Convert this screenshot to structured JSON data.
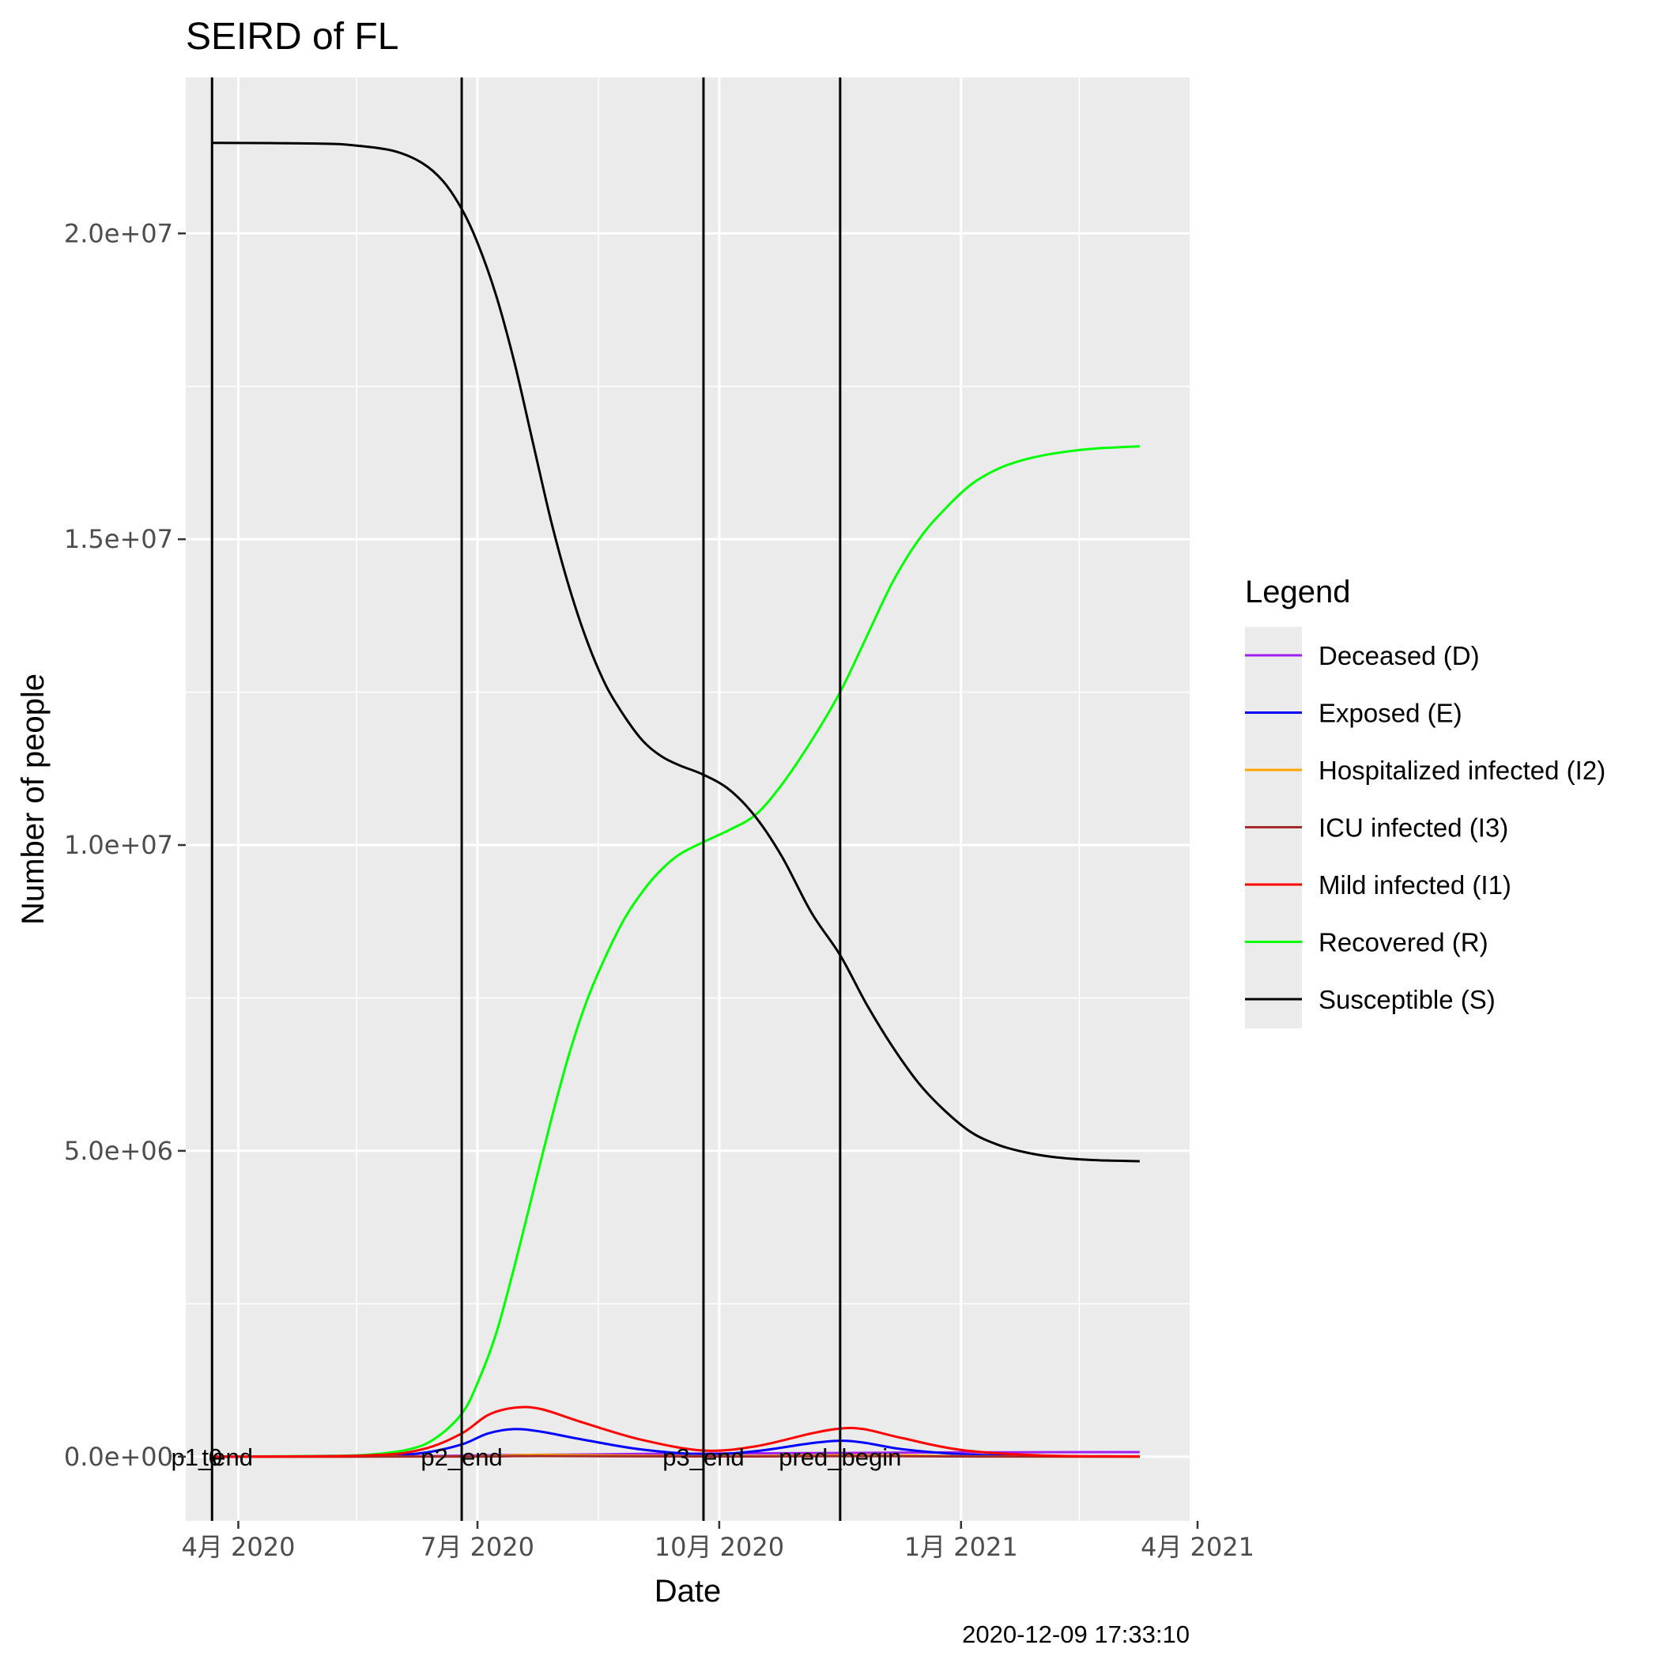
{
  "chart_data": {
    "type": "line",
    "title": "SEIRD of FL",
    "xlabel": "Date",
    "ylabel": "Number of people",
    "caption": "2020-12-09 17:33:10",
    "xlim": [
      "2020-03-12",
      "2021-03-29"
    ],
    "ylim": [
      -1050000,
      22550000
    ],
    "grid": true,
    "x_ticks": [
      {
        "date": "2020-04-01",
        "label": "4月 2020"
      },
      {
        "date": "2020-07-01",
        "label": "7月 2020"
      },
      {
        "date": "2020-10-01",
        "label": "10月 2020"
      },
      {
        "date": "2021-01-01",
        "label": "1月 2021"
      },
      {
        "date": "2021-04-01",
        "label": "4月 2021"
      }
    ],
    "x_minor_ticks": [
      "2020-05-16",
      "2020-08-16",
      "2020-11-16",
      "2021-02-15"
    ],
    "y_ticks": [
      {
        "value": 0,
        "label": "0.0e+00"
      },
      {
        "value": 5000000,
        "label": "5.0e+06"
      },
      {
        "value": 10000000,
        "label": "1.0e+07"
      },
      {
        "value": 15000000,
        "label": "1.5e+07"
      },
      {
        "value": 20000000,
        "label": "2.0e+07"
      }
    ],
    "y_minor_ticks": [
      2500000,
      7500000,
      12500000,
      17500000
    ],
    "vlines": [
      {
        "date": "2020-03-22",
        "label": "p1_end"
      },
      {
        "date": "2020-03-22",
        "label": "t0"
      },
      {
        "date": "2020-06-25",
        "label": "p2_end"
      },
      {
        "date": "2020-09-25",
        "label": "p3_end"
      },
      {
        "date": "2020-11-16",
        "label": "pred_begin"
      }
    ],
    "legend": {
      "title": "Legend",
      "position": "right"
    },
    "series": [
      {
        "name": "Deceased (D)",
        "color": "#a020f0",
        "x": [
          "2020-03-22",
          "2020-06-01",
          "2020-07-10",
          "2020-09-01",
          "2020-11-16",
          "2021-01-01",
          "2021-03-10"
        ],
        "values": [
          0,
          5000,
          25000,
          45000,
          60000,
          70000,
          75000
        ]
      },
      {
        "name": "Exposed (E)",
        "color": "#0000ff",
        "x": [
          "2020-03-22",
          "2020-05-20",
          "2020-06-10",
          "2020-06-25",
          "2020-07-05",
          "2020-07-15",
          "2020-07-25",
          "2020-08-10",
          "2020-09-01",
          "2020-09-25",
          "2020-10-15",
          "2020-11-05",
          "2020-11-16",
          "2020-11-25",
          "2020-12-10",
          "2021-01-01",
          "2021-02-01",
          "2021-03-10"
        ],
        "values": [
          0,
          10000,
          60000,
          200000,
          380000,
          450000,
          410000,
          280000,
          120000,
          40000,
          90000,
          220000,
          260000,
          230000,
          120000,
          40000,
          8000,
          2000
        ]
      },
      {
        "name": "Hospitalized infected (I2)",
        "color": "#ffa500",
        "x": [
          "2020-03-22",
          "2020-06-25",
          "2020-07-25",
          "2020-09-25",
          "2020-11-25",
          "2021-01-10",
          "2021-03-10"
        ],
        "values": [
          0,
          5000,
          30000,
          8000,
          25000,
          5000,
          1000
        ]
      },
      {
        "name": "ICU infected (I3)",
        "color": "#a52a2a",
        "x": [
          "2020-03-22",
          "2020-06-25",
          "2020-07-25",
          "2020-09-25",
          "2020-11-25",
          "2021-01-10",
          "2021-03-10"
        ],
        "values": [
          0,
          2000,
          10000,
          3000,
          8000,
          2000,
          500
        ]
      },
      {
        "name": "Mild infected (I1)",
        "color": "#ff0000",
        "x": [
          "2020-03-22",
          "2020-05-20",
          "2020-06-10",
          "2020-06-25",
          "2020-07-05",
          "2020-07-15",
          "2020-07-25",
          "2020-08-10",
          "2020-09-01",
          "2020-09-25",
          "2020-10-15",
          "2020-11-05",
          "2020-11-16",
          "2020-11-25",
          "2020-12-10",
          "2021-01-01",
          "2021-02-01",
          "2021-03-10"
        ],
        "values": [
          0,
          20000,
          120000,
          380000,
          680000,
          800000,
          780000,
          560000,
          280000,
          100000,
          170000,
          380000,
          460000,
          450000,
          300000,
          110000,
          20000,
          5000
        ]
      },
      {
        "name": "Recovered (R)",
        "color": "#00ff00",
        "x": [
          "2020-03-22",
          "2020-05-01",
          "2020-05-20",
          "2020-06-05",
          "2020-06-15",
          "2020-06-25",
          "2020-07-01",
          "2020-07-08",
          "2020-07-15",
          "2020-07-22",
          "2020-07-29",
          "2020-08-05",
          "2020-08-12",
          "2020-08-19",
          "2020-08-26",
          "2020-09-02",
          "2020-09-09",
          "2020-09-16",
          "2020-09-25",
          "2020-10-05",
          "2020-10-15",
          "2020-10-25",
          "2020-11-05",
          "2020-11-16",
          "2020-11-26",
          "2020-12-06",
          "2020-12-16",
          "2020-12-26",
          "2021-01-05",
          "2021-01-15",
          "2021-01-25",
          "2021-02-05",
          "2021-02-20",
          "2021-03-10"
        ],
        "values": [
          0,
          10000,
          30000,
          120000,
          300000,
          700000,
          1200000,
          2000000,
          3100000,
          4300000,
          5500000,
          6600000,
          7500000,
          8200000,
          8800000,
          9250000,
          9600000,
          9850000,
          10050000,
          10250000,
          10500000,
          11000000,
          11700000,
          12500000,
          13400000,
          14300000,
          15000000,
          15500000,
          15900000,
          16150000,
          16300000,
          16400000,
          16480000,
          16520000
        ]
      },
      {
        "name": "Susceptible (S)",
        "color": "#000000",
        "x": [
          "2020-03-22",
          "2020-05-01",
          "2020-05-15",
          "2020-05-30",
          "2020-06-10",
          "2020-06-18",
          "2020-06-25",
          "2020-07-01",
          "2020-07-08",
          "2020-07-15",
          "2020-07-22",
          "2020-07-29",
          "2020-08-05",
          "2020-08-12",
          "2020-08-19",
          "2020-08-26",
          "2020-09-02",
          "2020-09-09",
          "2020-09-16",
          "2020-09-25",
          "2020-10-05",
          "2020-10-15",
          "2020-10-25",
          "2020-11-05",
          "2020-11-16",
          "2020-11-26",
          "2020-12-06",
          "2020-12-16",
          "2020-12-26",
          "2021-01-05",
          "2021-01-15",
          "2021-01-25",
          "2021-02-05",
          "2021-02-20",
          "2021-03-10"
        ],
        "values": [
          21480000,
          21470000,
          21440000,
          21350000,
          21150000,
          20850000,
          20400000,
          19850000,
          19000000,
          17900000,
          16600000,
          15300000,
          14200000,
          13300000,
          12600000,
          12100000,
          11700000,
          11450000,
          11300000,
          11150000,
          10900000,
          10450000,
          9800000,
          8900000,
          8200000,
          7400000,
          6700000,
          6100000,
          5650000,
          5300000,
          5100000,
          4980000,
          4900000,
          4850000,
          4830000
        ]
      }
    ]
  }
}
